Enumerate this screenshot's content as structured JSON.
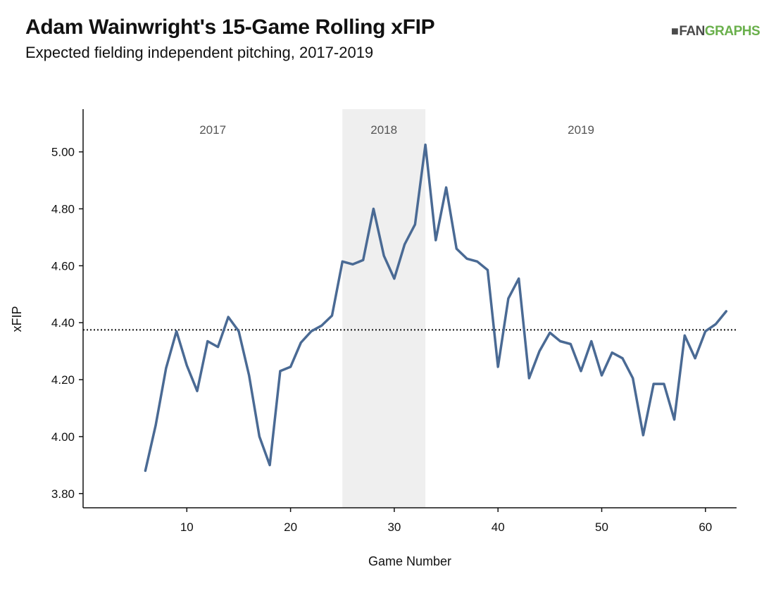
{
  "header": {
    "title": "Adam Wainwright's 15-Game Rolling xFIP",
    "subtitle": "Expected fielding independent pitching, 2017-2019"
  },
  "logo": {
    "mark": "■",
    "text_a": "FAN",
    "text_b": "GRAPHS",
    "color_a": "#4a4a4a",
    "color_b": "#6ab04c"
  },
  "chart_data": {
    "type": "line",
    "title": "Adam Wainwright's 15-Game Rolling xFIP",
    "subtitle": "Expected fielding independent pitching, 2017-2019",
    "xlabel": "Game Number",
    "ylabel": "xFIP",
    "xlim": [
      0,
      63
    ],
    "ylim": [
      3.75,
      5.15
    ],
    "xticks": [
      10,
      20,
      30,
      40,
      50,
      60
    ],
    "yticks": [
      3.8,
      4.0,
      4.2,
      4.4,
      4.6,
      4.8,
      5.0
    ],
    "ytick_labels": [
      "3.80",
      "4.00",
      "4.20",
      "4.40",
      "4.60",
      "4.80",
      "5.00"
    ],
    "grid": false,
    "line_color": "#4a6a94",
    "reference_line": {
      "y": 4.375,
      "style": "dotted",
      "color": "#111111"
    },
    "seasons": [
      {
        "label": "2017",
        "start": 0,
        "end": 25,
        "shaded": false
      },
      {
        "label": "2018",
        "start": 25,
        "end": 33,
        "shaded": true,
        "color": "#efefef"
      },
      {
        "label": "2019",
        "start": 33,
        "end": 63,
        "shaded": false
      }
    ],
    "series": [
      {
        "x": [
          6,
          7,
          8,
          9,
          10,
          11,
          12,
          13,
          14,
          15,
          16,
          17,
          18,
          19,
          20,
          21,
          22,
          23,
          24,
          25,
          26,
          27,
          28,
          29,
          30,
          31,
          32,
          33,
          34,
          35,
          36,
          37,
          38,
          39,
          40,
          41,
          42,
          43,
          44,
          45,
          46,
          47,
          48,
          49,
          50,
          51,
          52,
          53,
          54,
          55,
          56,
          57,
          58,
          59,
          60,
          61,
          62
        ],
        "values": [
          3.88,
          4.04,
          4.24,
          4.37,
          4.25,
          4.16,
          4.335,
          4.315,
          4.42,
          4.37,
          4.215,
          4.0,
          3.9,
          4.23,
          4.245,
          4.33,
          4.37,
          4.39,
          4.425,
          4.615,
          4.605,
          4.62,
          4.8,
          4.635,
          4.555,
          4.675,
          4.745,
          5.025,
          4.69,
          4.875,
          4.66,
          4.625,
          4.615,
          4.585,
          4.245,
          4.485,
          4.555,
          4.205,
          4.3,
          4.365,
          4.335,
          4.325,
          4.23,
          4.335,
          4.215,
          4.295,
          4.275,
          4.205,
          4.005,
          4.185,
          4.185,
          4.06,
          4.355,
          4.275,
          4.37,
          4.395,
          4.44
        ]
      }
    ]
  }
}
